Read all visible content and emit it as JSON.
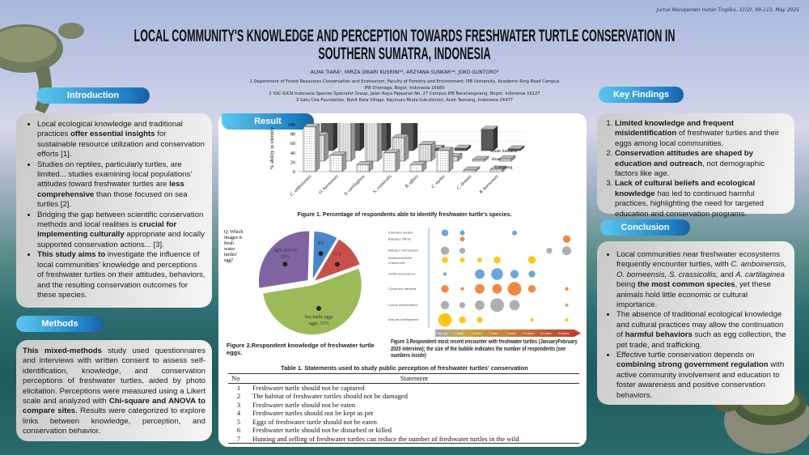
{
  "journal": "Jurnal Manajemen Hutan Tropika, 31(2), 99-113, May 2025",
  "title_line1": "LOCAL COMMUNITY'S KNOWLEDGE AND PERCEPTION TOWARDS FRESHWATER TURTLE CONSERVATION IN",
  "title_line2": "SOUTHERN SUMATRA, INDONESIA",
  "authors": "ALMA TIARA¹, MIRZA DIKARI KUSRINI¹², ARZYANA SUNKAR¹*, JOKO GUNTORO³",
  "affiliations": [
    "1 Department of Forest Resources Conservation and Ecotourism, Faculty of Forestry and Environment, IPB University, Academic Ring Road Campus",
    "IPB Dramaga, Bogor, Indonesia 16680",
    "2 SSC-IUCN Indonesia Species Specialist Group, Jalan Raya Pajajaran No. 27 Campus IPB Baranangsiang, Bogor, Indonesia 16127",
    "3 Satu Cita Foundation, Bukit Rata Village, Kejuruan Muda Sub-district, Aceh Tamiang, Indonesia 24477"
  ],
  "sections": {
    "introduction": "Introduction",
    "methods": "Methods",
    "result": "Result",
    "key_findings": "Key Findings",
    "conclusion": "Conclusion"
  },
  "introduction": [
    [
      {
        "t": "Local ecological knowledge and traditional practices "
      },
      {
        "t": "offer essential insights",
        "b": true
      },
      {
        "t": " for sustainable resource utilization and conservation efforts [1]."
      }
    ],
    [
      {
        "t": "Studies on reptiles, particularly turtles, are limited... studies examining local populations' attitudes toward freshwater turtles are "
      },
      {
        "t": "less comprehensive",
        "b": true
      },
      {
        "t": " than those focused on sea turtles [2]."
      }
    ],
    [
      {
        "t": "Bridging the gap between scientific conservation methods and local realities is "
      },
      {
        "t": "crucial for implementing culturally",
        "b": true
      },
      {
        "t": " appropriate and locally supported conservation actions... [3]."
      }
    ],
    [
      {
        "t": "This study aims to",
        "b": true
      },
      {
        "t": " investigate the influence of local communities' knowledge and perceptions of freshwater turtles on their attitudes, behaviors, and the resulting conservation outcomes for these species."
      }
    ]
  ],
  "methods": [
    {
      "t": "This mixed-methods",
      "b": true
    },
    {
      "t": " study used questionnaires and interviews with written consent to assess self-identification, knowledge, and conservation perceptions of freshwater turtles, aided by photo elicitation. Perceptions were measured using a Likert scale and analyzed with "
    },
    {
      "t": "Chi-square and ANOVA to compare sites",
      "b": true
    },
    {
      "t": ". Results were categorized to explore links between knowledge, perception, and conservation behavior."
    }
  ],
  "key_findings": [
    [
      {
        "t": "Limited knowledge and frequent misidentification",
        "b": true
      },
      {
        "t": " of freshwater turtles and their eggs among local communities."
      }
    ],
    [
      {
        "t": "Conservation attitudes are shaped by education and outreach",
        "b": true
      },
      {
        "t": ", not demographic factors like age."
      }
    ],
    [
      {
        "t": "Lack of cultural beliefs and ecological knowledge",
        "b": true
      },
      {
        "t": " has led to continued harmful practices, highlighting the need for targeted education and conservation programs."
      }
    ]
  ],
  "conclusion": [
    [
      {
        "t": "Local communities near freshwater ecosystems frequently encounter turtles, with "
      },
      {
        "t": "C. amboinensis, O. borneensis, S. crassicollis,",
        "i": true
      },
      {
        "t": " and "
      },
      {
        "t": "A. cartilaginea",
        "i": true
      },
      {
        "t": " being "
      },
      {
        "t": "the most common species",
        "b": true
      },
      {
        "t": ", yet these animals hold little economic or cultural importance."
      }
    ],
    [
      {
        "t": "The absence of traditional ecological knowledge and cultural practices may allow the continuation of "
      },
      {
        "t": "harmful behaviors",
        "b": true
      },
      {
        "t": " such as egg collection, the pet trade, and trafficking."
      }
    ],
    [
      {
        "t": "Effective turtle conservation depends on "
      },
      {
        "t": "combining strong government regulation",
        "b": true
      },
      {
        "t": " with active community involvement and education to foster awareness and positive conservation behaviors."
      }
    ]
  ],
  "figure1_caption": "Figure 1. Percentage of respondents able to identify freshwater turtle's species.",
  "figure2_caption": "Figure 2.Respondent knowledge of freshwater turtle eggs.",
  "figure3_caption": "Figure 3.Respondent most recent encounter with freshwater turtles (JanuaryFebruary 2020 interview); the size of the bubble indicates the number of respondents (see numbers inside)",
  "table": {
    "caption": "Table 1. Statements used to study public perception of freshwater turtles' conservation",
    "headers": [
      "No",
      "Statement"
    ],
    "rows": [
      [
        "1",
        "Freshwater turtle should not be captured"
      ],
      [
        "2",
        "The habitat of freshwater turtles should not be damaged"
      ],
      [
        "3",
        "Freshwater turtle should not be eaten"
      ],
      [
        "4",
        "Freshwater turtles should not be kept as pet"
      ],
      [
        "5",
        "Eggs of freshwater turtle should not be eaten"
      ],
      [
        "6",
        "Freshwater turtle should not be disturbed or killed"
      ],
      [
        "7",
        "Hunting and selling of freshwater turtles can reduce the number of freshwater turtles in the wild"
      ]
    ]
  },
  "chart_data": [
    {
      "type": "bar",
      "ylabel": "% ability to identify",
      "ylim": [
        0,
        100
      ],
      "yticks": [
        0,
        20,
        40,
        60,
        80,
        100
      ],
      "categories": [
        "C. amboinensis",
        "O. borneensis",
        "A. cartilaginea",
        "S. crassicolis",
        "B. affinis",
        "C. mydas",
        "C. dentata",
        "B. borneensis"
      ],
      "series": [
        {
          "name": "Lampung",
          "values": [
            95,
            35,
            15,
            40,
            15,
            45,
            3,
            5
          ]
        },
        {
          "name": "Riau",
          "values": [
            55,
            85,
            100,
            50,
            35,
            10,
            3,
            5
          ]
        },
        {
          "name": "South Sumatra",
          "values": [
            100,
            95,
            90,
            75,
            5,
            5,
            45,
            3
          ]
        }
      ],
      "colors": [
        "#f4f4f4",
        "#d8d8d8",
        "#5a5a5a"
      ]
    },
    {
      "type": "pie",
      "question": "Q: Which images is fresh water turtles' egg?",
      "slices": [
        {
          "label": "",
          "value": 8,
          "color": "#4a86c8",
          "icon": "chicken-icon"
        },
        {
          "label": "",
          "value": 11,
          "color": "#c8504b",
          "icon": "bird-icon"
        },
        {
          "label": "Sea turtle eggs",
          "value": 53,
          "color": "#9bbb59",
          "icon": "sea-turtle-icon"
        },
        {
          "label": "right answer",
          "value": 28,
          "color": "#8064a2",
          "icon": "freshwater-turtle-icon"
        }
      ]
    },
    {
      "type": "scatter",
      "subtype": "bubble",
      "rows": [
        "Chelonia mydas",
        "Batagur affinis",
        "Batagur borneensis",
        "Siebenrockiella crassicollis",
        "Orlitia borneensis",
        "Cyclemys dentata",
        "Cuora amboinensis",
        "Amyda cartilaginea"
      ],
      "columns": [
        "1 day ago",
        "1 week",
        "1 month",
        "1 year",
        "5 years",
        "10 years",
        "20 years",
        "30 years"
      ],
      "row_colors": [
        "#5b9bd5",
        "#ed7d31",
        "#a5a5a5",
        "#ffc000",
        "#5b9bd5",
        "#ed7d31",
        "#a5a5a5",
        "#ffc000"
      ],
      "points": [
        [
          0,
          0,
          4
        ],
        [
          0,
          1,
          2
        ],
        [
          0,
          4,
          2
        ],
        [
          1,
          1,
          2
        ],
        [
          1,
          7,
          5
        ],
        [
          2,
          0,
          6
        ],
        [
          2,
          1,
          3
        ],
        [
          2,
          6,
          3
        ],
        [
          2,
          7,
          7
        ],
        [
          3,
          0,
          3
        ],
        [
          3,
          1,
          2
        ],
        [
          3,
          2,
          2
        ],
        [
          3,
          3,
          4
        ],
        [
          3,
          5,
          5
        ],
        [
          4,
          0,
          1
        ],
        [
          4,
          2,
          8
        ],
        [
          4,
          3,
          12
        ],
        [
          4,
          4,
          6
        ],
        [
          4,
          5,
          4
        ],
        [
          5,
          0,
          5
        ],
        [
          5,
          1,
          1
        ],
        [
          5,
          2,
          8
        ],
        [
          5,
          3,
          8
        ],
        [
          5,
          4,
          16
        ],
        [
          5,
          5,
          5
        ],
        [
          5,
          7,
          1
        ],
        [
          6,
          0,
          6
        ],
        [
          6,
          1,
          3
        ],
        [
          6,
          2,
          8
        ],
        [
          6,
          3,
          16
        ],
        [
          6,
          4,
          9
        ],
        [
          6,
          7,
          1
        ],
        [
          7,
          0,
          16
        ],
        [
          7,
          1,
          4
        ],
        [
          7,
          2,
          3
        ],
        [
          7,
          5,
          1
        ],
        [
          7,
          7,
          1
        ]
      ]
    }
  ]
}
